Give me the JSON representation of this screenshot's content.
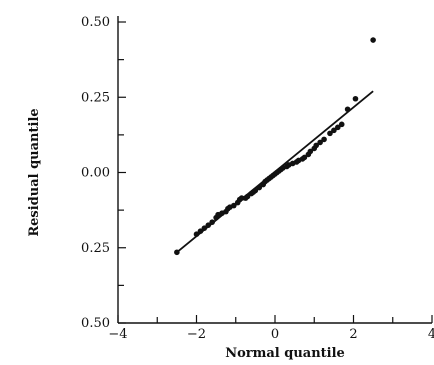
{
  "chart_data": {
    "type": "scatter",
    "xlabel": "Normal quantile",
    "ylabel": "Residual quantile",
    "xlim": [
      -4,
      4
    ],
    "ylim": [
      -0.5,
      0.5
    ],
    "x_major_ticks": [
      -4,
      -2,
      0,
      2,
      4
    ],
    "x_tick_labels": [
      "−4",
      "−2",
      "0",
      "2",
      "4"
    ],
    "x_minor_ticks": [
      -3,
      -1,
      1,
      3
    ],
    "y_major_ticks": [
      0.5,
      0.25,
      0,
      -0.25,
      -0.5
    ],
    "y_tick_labels": [
      "0.50",
      "0.25",
      "0.00",
      "0.25",
      "0.50"
    ],
    "y_minor_ticks": [
      0.375,
      0.125,
      -0.125,
      -0.375
    ],
    "grid": false,
    "reference_line": {
      "x": [
        -2.5,
        2.5
      ],
      "y": [
        -0.265,
        0.27
      ]
    },
    "points": [
      [
        -2.5,
        -0.265
      ],
      [
        -2.0,
        -0.205
      ],
      [
        -1.9,
        -0.195
      ],
      [
        -1.8,
        -0.185
      ],
      [
        -1.7,
        -0.175
      ],
      [
        -1.6,
        -0.165
      ],
      [
        -1.5,
        -0.15
      ],
      [
        -1.45,
        -0.14
      ],
      [
        -1.35,
        -0.135
      ],
      [
        -1.25,
        -0.13
      ],
      [
        -1.2,
        -0.12
      ],
      [
        -1.15,
        -0.115
      ],
      [
        -1.05,
        -0.11
      ],
      [
        -0.95,
        -0.1
      ],
      [
        -0.9,
        -0.09
      ],
      [
        -0.85,
        -0.085
      ],
      [
        -0.75,
        -0.085
      ],
      [
        -0.7,
        -0.08
      ],
      [
        -0.6,
        -0.07
      ],
      [
        -0.55,
        -0.065
      ],
      [
        -0.5,
        -0.06
      ],
      [
        -0.4,
        -0.05
      ],
      [
        -0.3,
        -0.04
      ],
      [
        -0.25,
        -0.03
      ],
      [
        -0.2,
        -0.025
      ],
      [
        -0.15,
        -0.02
      ],
      [
        -0.1,
        -0.015
      ],
      [
        -0.05,
        -0.01
      ],
      [
        0.0,
        -0.005
      ],
      [
        0.05,
        0.0
      ],
      [
        0.1,
        0.005
      ],
      [
        0.15,
        0.01
      ],
      [
        0.2,
        0.015
      ],
      [
        0.3,
        0.02
      ],
      [
        0.35,
        0.025
      ],
      [
        0.45,
        0.03
      ],
      [
        0.55,
        0.035
      ],
      [
        0.6,
        0.04
      ],
      [
        0.7,
        0.045
      ],
      [
        0.75,
        0.05
      ],
      [
        0.85,
        0.06
      ],
      [
        0.9,
        0.07
      ],
      [
        1.0,
        0.08
      ],
      [
        1.05,
        0.09
      ],
      [
        1.15,
        0.1
      ],
      [
        1.25,
        0.11
      ],
      [
        1.4,
        0.13
      ],
      [
        1.5,
        0.14
      ],
      [
        1.6,
        0.15
      ],
      [
        1.7,
        0.16
      ],
      [
        1.85,
        0.21
      ],
      [
        2.05,
        0.245
      ],
      [
        2.5,
        0.44
      ]
    ]
  }
}
